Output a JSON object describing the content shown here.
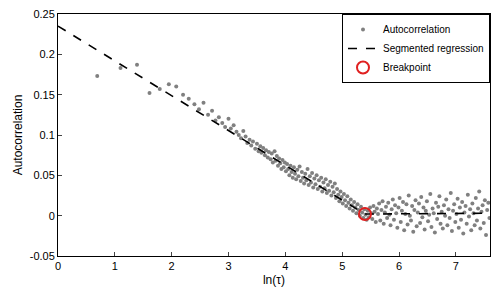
{
  "chart_data": {
    "type": "scatter",
    "xlabel": "ln(τ)",
    "ylabel": "Autocorrelation",
    "xlim": [
      0,
      7.6
    ],
    "ylim": [
      -0.05,
      0.25
    ],
    "xticks": [
      0,
      1,
      2,
      3,
      4,
      5,
      6,
      7
    ],
    "yticks": [
      -0.05,
      0,
      0.05,
      0.1,
      0.15,
      0.2,
      0.25
    ],
    "grid": false,
    "legend": "top right",
    "series": [
      {
        "name": "Autocorrelation",
        "type": "scatter",
        "marker": "circle",
        "color": "#808080",
        "x": [
          0.69,
          1.1,
          1.39,
          1.61,
          1.79,
          1.95,
          2.08,
          2.2,
          2.3,
          2.4,
          2.48,
          2.56,
          2.64,
          2.71,
          2.77,
          2.83,
          2.89,
          2.94,
          3.0,
          3.04,
          3.09,
          3.14,
          3.18,
          3.22,
          3.26,
          3.3,
          3.33,
          3.37,
          3.4,
          3.43,
          3.47,
          3.5,
          3.53,
          3.56,
          3.58,
          3.61,
          3.64,
          3.66,
          3.69,
          3.71,
          3.74,
          3.76,
          3.78,
          3.81,
          3.83,
          3.85,
          3.87,
          3.89,
          3.91,
          3.93,
          3.95,
          3.97,
          3.99,
          4.01,
          4.03,
          4.05,
          4.07,
          4.09,
          4.11,
          4.13,
          4.15,
          4.17,
          4.19,
          4.21,
          4.23,
          4.25,
          4.27,
          4.29,
          4.31,
          4.33,
          4.35,
          4.37,
          4.39,
          4.41,
          4.43,
          4.45,
          4.47,
          4.49,
          4.51,
          4.53,
          4.55,
          4.57,
          4.59,
          4.61,
          4.63,
          4.65,
          4.67,
          4.69,
          4.71,
          4.73,
          4.75,
          4.77,
          4.79,
          4.81,
          4.83,
          4.85,
          4.87,
          4.89,
          4.91,
          4.93,
          4.95,
          4.97,
          4.99,
          5.01,
          5.03,
          5.05,
          5.07,
          5.09,
          5.11,
          5.13,
          5.15,
          5.17,
          5.19,
          5.21,
          5.23,
          5.25,
          5.27,
          5.29,
          5.31,
          5.33,
          5.35,
          5.37,
          5.39,
          5.41,
          5.43,
          5.45,
          5.47,
          5.49,
          5.51,
          5.53,
          5.55,
          5.57,
          5.59,
          5.61,
          5.63,
          5.65,
          5.67,
          5.69,
          5.71,
          5.73,
          5.75,
          5.77,
          5.79,
          5.81,
          5.83,
          5.85,
          5.87,
          5.89,
          5.91,
          5.93,
          5.95,
          5.97,
          5.99,
          6.01,
          6.03,
          6.05,
          6.07,
          6.09,
          6.11,
          6.13,
          6.15,
          6.17,
          6.19,
          6.21,
          6.23,
          6.25,
          6.27,
          6.29,
          6.31,
          6.33,
          6.35,
          6.37,
          6.39,
          6.41,
          6.43,
          6.45,
          6.47,
          6.49,
          6.51,
          6.53,
          6.55,
          6.57,
          6.59,
          6.61,
          6.63,
          6.65,
          6.67,
          6.69,
          6.71,
          6.73,
          6.75,
          6.77,
          6.79,
          6.81,
          6.83,
          6.85,
          6.87,
          6.89,
          6.91,
          6.93,
          6.95,
          6.97,
          6.99,
          7.01,
          7.03,
          7.05,
          7.07,
          7.09,
          7.11,
          7.13,
          7.15,
          7.17,
          7.19,
          7.21,
          7.23,
          7.25,
          7.27,
          7.29,
          7.31,
          7.33,
          7.35,
          7.37,
          7.39,
          7.41,
          7.43,
          7.45,
          7.47,
          7.49,
          7.51,
          7.53,
          7.55,
          7.57,
          7.59
        ],
        "values": [
          0.173,
          0.183,
          0.187,
          0.152,
          0.157,
          0.163,
          0.16,
          0.15,
          0.145,
          0.138,
          0.132,
          0.14,
          0.125,
          0.13,
          0.118,
          0.122,
          0.115,
          0.11,
          0.12,
          0.108,
          0.112,
          0.104,
          0.1,
          0.096,
          0.105,
          0.098,
          0.09,
          0.094,
          0.087,
          0.092,
          0.083,
          0.089,
          0.08,
          0.086,
          0.078,
          0.084,
          0.075,
          0.081,
          0.072,
          0.079,
          0.07,
          0.077,
          0.066,
          0.08,
          0.068,
          0.074,
          0.062,
          0.071,
          0.065,
          0.058,
          0.069,
          0.06,
          0.066,
          0.055,
          0.064,
          0.058,
          0.05,
          0.062,
          0.054,
          0.047,
          0.06,
          0.052,
          0.045,
          0.057,
          0.049,
          0.061,
          0.043,
          0.054,
          0.047,
          0.04,
          0.052,
          0.044,
          0.058,
          0.038,
          0.049,
          0.041,
          0.053,
          0.035,
          0.046,
          0.039,
          0.05,
          0.033,
          0.044,
          0.036,
          0.047,
          0.03,
          0.041,
          0.034,
          0.045,
          0.028,
          0.038,
          0.031,
          0.042,
          0.025,
          0.036,
          0.029,
          0.04,
          0.022,
          0.033,
          0.026,
          0.018,
          0.03,
          0.023,
          0.015,
          0.027,
          0.019,
          0.012,
          0.024,
          0.016,
          0.009,
          0.02,
          0.013,
          0.006,
          0.017,
          0.01,
          0.003,
          0.014,
          0.007,
          0.0,
          0.011,
          0.004,
          -0.003,
          0.008,
          0.001,
          -0.005,
          0.006,
          -0.002,
          0.01,
          0.003,
          -0.004,
          0.012,
          0.005,
          -0.008,
          0.009,
          0.002,
          0.015,
          -0.006,
          0.007,
          0.018,
          -0.01,
          0.004,
          0.011,
          -0.003,
          0.016,
          0.001,
          -0.012,
          0.008,
          0.02,
          -0.005,
          0.013,
          0.003,
          -0.015,
          0.01,
          0.022,
          -0.008,
          0.006,
          0.017,
          -0.018,
          0.002,
          0.014,
          -0.011,
          0.025,
          0.0,
          -0.006,
          0.012,
          -0.02,
          0.007,
          0.019,
          -0.013,
          0.004,
          0.015,
          -0.009,
          0.023,
          -0.002,
          0.01,
          -0.017,
          0.006,
          0.018,
          -0.007,
          0.001,
          0.027,
          -0.014,
          0.009,
          0.003,
          -0.021,
          0.016,
          -0.004,
          0.011,
          0.024,
          -0.01,
          0.005,
          -0.016,
          0.013,
          0.0,
          0.02,
          -0.012,
          0.008,
          -0.003,
          0.028,
          -0.019,
          0.006,
          0.014,
          -0.008,
          0.002,
          0.021,
          -0.015,
          0.01,
          -0.005,
          0.017,
          -0.022,
          0.004,
          0.012,
          -0.01,
          0.026,
          -0.001,
          0.008,
          -0.018,
          0.015,
          0.003,
          -0.012,
          0.022,
          -0.006,
          0.009,
          0.03,
          -0.016,
          0.005,
          0.013,
          -0.009,
          0.019,
          -0.024,
          0.007,
          0.016,
          -0.003
        ]
      },
      {
        "name": "Segmented regression",
        "type": "line",
        "line_style": "dash",
        "color": "#000000",
        "x": [
          0,
          5.4,
          7.6
        ],
        "values": [
          0.235,
          0.002,
          0.003
        ]
      },
      {
        "name": "Breakpoint",
        "type": "scatter",
        "marker": "circle-open",
        "color": "#e02020",
        "x": [
          5.4
        ],
        "values": [
          0.002
        ]
      }
    ]
  }
}
